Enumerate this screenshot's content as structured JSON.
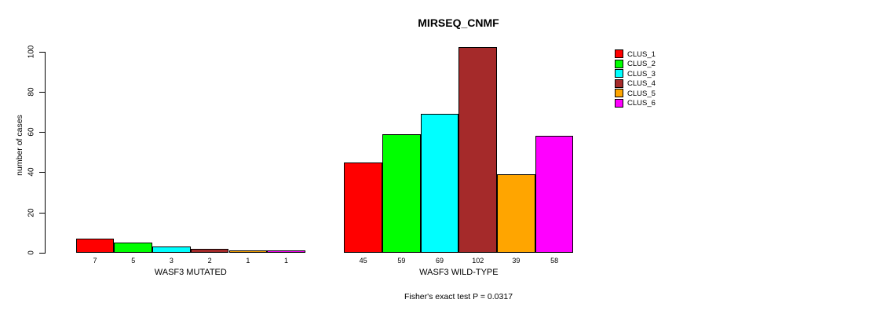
{
  "chart_data": {
    "type": "bar",
    "title": "MIRSEQ_CNMF",
    "ylabel": "number of cases",
    "xlabel": "",
    "ylim": [
      0,
      100
    ],
    "yticks": [
      0,
      20,
      40,
      60,
      80,
      100
    ],
    "grid": false,
    "legend_position": "right",
    "annotation": "Fisher's exact test P = 0.0317",
    "background_color": "#FFFFFF",
    "series_colors": [
      "#FF0000",
      "#00FF00",
      "#00FFFF",
      "#A52A2A",
      "#FFA500",
      "#FF00FF"
    ],
    "legend": {
      "entries": [
        {
          "label": "CLUS_1",
          "color": "#FF0000"
        },
        {
          "label": "CLUS_2",
          "color": "#00FF00"
        },
        {
          "label": "CLUS_3",
          "color": "#00FFFF"
        },
        {
          "label": "CLUS_4",
          "color": "#A52A2A"
        },
        {
          "label": "CLUS_5",
          "color": "#FFA500"
        },
        {
          "label": "CLUS_6",
          "color": "#FF00FF"
        }
      ]
    },
    "groups": [
      {
        "label": "WASF3 MUTATED",
        "values": [
          7,
          5,
          3,
          2,
          1,
          1
        ]
      },
      {
        "label": "WASF3 WILD-TYPE",
        "values": [
          45,
          59,
          69,
          102,
          39,
          58
        ]
      }
    ]
  }
}
